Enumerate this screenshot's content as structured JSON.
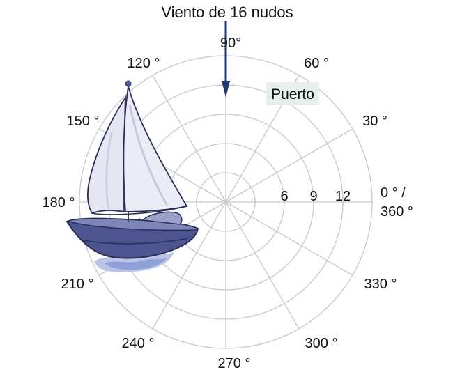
{
  "title": "Viento de 16 nudos",
  "port_label": "Puerto",
  "angle_labels": [
    {
      "deg": 90,
      "text": "90°"
    },
    {
      "deg": 60,
      "text": "60 °"
    },
    {
      "deg": 30,
      "text": "30 °"
    },
    {
      "deg": 0,
      "text": "0 ° /",
      "text2": "360 °"
    },
    {
      "deg": 330,
      "text": "330 °"
    },
    {
      "deg": 300,
      "text": "300 °"
    },
    {
      "deg": 270,
      "text": "270 °"
    },
    {
      "deg": 240,
      "text": "240 °"
    },
    {
      "deg": 210,
      "text": "210 °"
    },
    {
      "deg": 180,
      "text": "180 °"
    },
    {
      "deg": 150,
      "text": "150 °"
    },
    {
      "deg": 120,
      "text": "120 °"
    }
  ],
  "radial_labels": [
    "6",
    "9",
    "12"
  ],
  "colors": {
    "grid": "#c8c8c8",
    "arrow": "#1f3a6e",
    "port_box": "#e6eeee",
    "hull": "#4d5590",
    "sail": "#e6e6f2"
  },
  "icons": {
    "wind_arrow": "down-arrow-icon",
    "boat": "sailboat-illustration"
  }
}
